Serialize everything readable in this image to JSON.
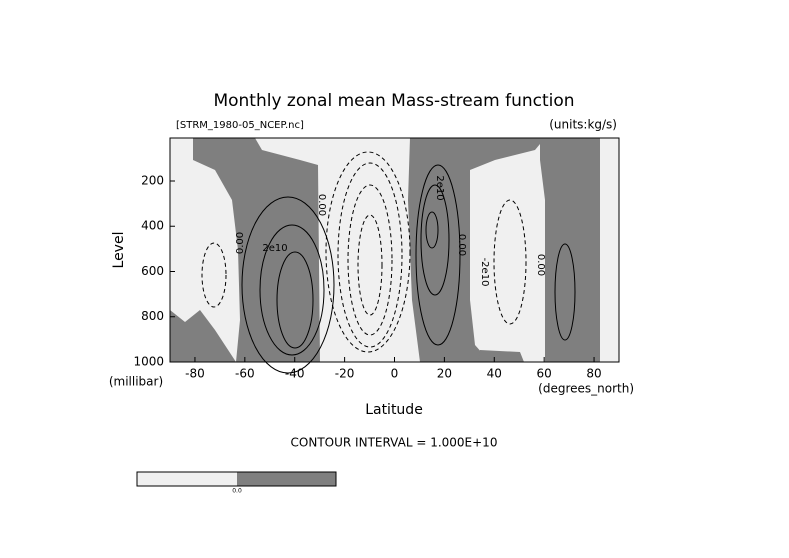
{
  "chart_data": {
    "type": "contour",
    "title": "Monthly zonal mean Mass-stream function",
    "subtitle_left": "[STRM_1980-05_NCEP.nc]",
    "subtitle_right": "(units:kg/s)",
    "x_label": "Latitude",
    "x_unit": "(degrees_north)",
    "y_label": "Level",
    "y_unit": "(millibar)",
    "xlim": [
      -90,
      90
    ],
    "ylim": [
      1000,
      10
    ],
    "xticks": [
      -80,
      -60,
      -40,
      -20,
      0,
      20,
      40,
      60,
      80
    ],
    "yticks": [
      200,
      400,
      600,
      800,
      1000
    ],
    "contour_labels": [
      {
        "value": 0,
        "label": "0.00"
      },
      {
        "value": 20000000000,
        "label": "2e10"
      },
      {
        "value": 0,
        "label": "0.00"
      },
      {
        "value": 0,
        "label": "0.00"
      },
      {
        "value": -20000000000,
        "label": "-2e10"
      },
      {
        "value": 0,
        "label": "0.00"
      },
      {
        "value": 20000000000,
        "label": "2e10"
      }
    ],
    "contour_interval": "CONTOUR INTERVAL = 1.000E+10",
    "colorbar": {
      "ticks": [
        {
          "value": 0,
          "label": "0.0"
        }
      ],
      "colors": [
        "#f0f0f0",
        "#7f7f7f"
      ]
    }
  }
}
